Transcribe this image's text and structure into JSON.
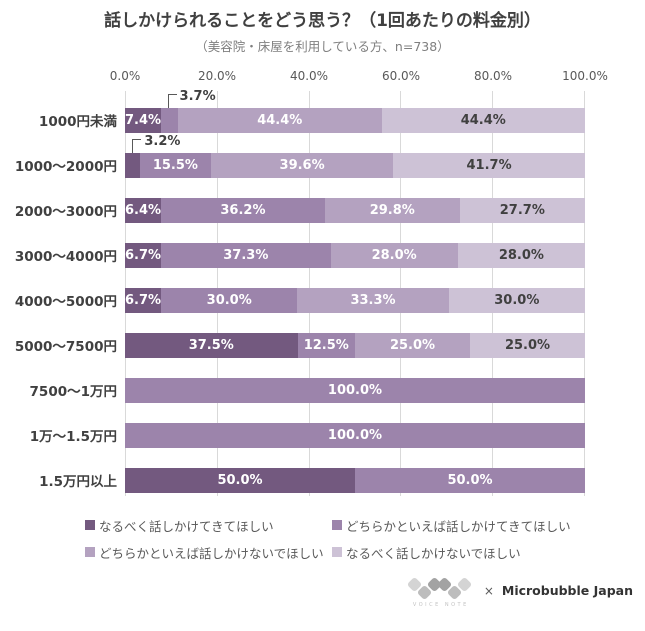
{
  "title": "話しかけられることをどう思う？（1回あたりの料金別）",
  "subtitle": "（美容院・床屋を利用している方、n=738）",
  "axis": {
    "ticks": [
      "0.0%",
      "20.0%",
      "40.0%",
      "60.0%",
      "80.0%",
      "100.0%"
    ]
  },
  "colors": {
    "series": [
      "#73597f",
      "#9c84ab",
      "#b4a2c0",
      "#cdc2d6"
    ],
    "gridline": "#d9d9d9",
    "label_on_light": "#404040",
    "label_on_dark": "#ffffff"
  },
  "legend": [
    {
      "label": "なるべく話しかけてきてほしい",
      "color": "#73597f"
    },
    {
      "label": "どちらかといえば話しかけてきてほしい",
      "color": "#9c84ab"
    },
    {
      "label": "どちらかといえば話しかけないでほしい",
      "color": "#b4a2c0"
    },
    {
      "label": "なるべく話しかけないでほしい",
      "color": "#cdc2d6"
    }
  ],
  "rows": [
    {
      "category": "1000円未満",
      "segments": [
        {
          "value": 7.4,
          "label": "7.4%",
          "series": 0,
          "label_pos": "center"
        },
        {
          "value": 3.7,
          "label": "3.7%",
          "series": 1,
          "label_pos": "callout"
        },
        {
          "value": 44.4,
          "label": "44.4%",
          "series": 2,
          "label_pos": "center"
        },
        {
          "value": 44.4,
          "label": "44.4%",
          "series": 3,
          "label_pos": "center"
        }
      ]
    },
    {
      "category": "1000〜2000円",
      "segments": [
        {
          "value": 3.2,
          "label": "3.2%",
          "series": 0,
          "label_pos": "callout"
        },
        {
          "value": 15.5,
          "label": "15.5%",
          "series": 1,
          "label_pos": "center"
        },
        {
          "value": 39.6,
          "label": "39.6%",
          "series": 2,
          "label_pos": "center"
        },
        {
          "value": 41.7,
          "label": "41.7%",
          "series": 3,
          "label_pos": "center"
        }
      ]
    },
    {
      "category": "2000〜3000円",
      "segments": [
        {
          "value": 6.4,
          "label": "6.4%",
          "series": 0,
          "label_pos": "center"
        },
        {
          "value": 36.2,
          "label": "36.2%",
          "series": 1,
          "label_pos": "center"
        },
        {
          "value": 29.8,
          "label": "29.8%",
          "series": 2,
          "label_pos": "center"
        },
        {
          "value": 27.7,
          "label": "27.7%",
          "series": 3,
          "label_pos": "center"
        }
      ]
    },
    {
      "category": "3000〜4000円",
      "segments": [
        {
          "value": 6.7,
          "label": "6.7%",
          "series": 0,
          "label_pos": "center"
        },
        {
          "value": 37.3,
          "label": "37.3%",
          "series": 1,
          "label_pos": "center"
        },
        {
          "value": 28.0,
          "label": "28.0%",
          "series": 2,
          "label_pos": "center"
        },
        {
          "value": 28.0,
          "label": "28.0%",
          "series": 3,
          "label_pos": "center"
        }
      ]
    },
    {
      "category": "4000〜5000円",
      "segments": [
        {
          "value": 6.7,
          "label": "6.7%",
          "series": 0,
          "label_pos": "center"
        },
        {
          "value": 30.0,
          "label": "30.0%",
          "series": 1,
          "label_pos": "center"
        },
        {
          "value": 33.3,
          "label": "33.3%",
          "series": 2,
          "label_pos": "center"
        },
        {
          "value": 30.0,
          "label": "30.0%",
          "series": 3,
          "label_pos": "center"
        }
      ]
    },
    {
      "category": "5000〜7500円",
      "segments": [
        {
          "value": 37.5,
          "label": "37.5%",
          "series": 0,
          "label_pos": "center"
        },
        {
          "value": 12.5,
          "label": "12.5%",
          "series": 1,
          "label_pos": "center"
        },
        {
          "value": 25.0,
          "label": "25.0%",
          "series": 2,
          "label_pos": "center"
        },
        {
          "value": 25.0,
          "label": "25.0%",
          "series": 3,
          "label_pos": "center"
        }
      ]
    },
    {
      "category": "7500〜1万円",
      "segments": [
        {
          "value": 100.0,
          "label": "100.0%",
          "series": 1,
          "label_pos": "center"
        }
      ]
    },
    {
      "category": "1万〜1.5万円",
      "segments": [
        {
          "value": 100.0,
          "label": "100.0%",
          "series": 1,
          "label_pos": "center"
        }
      ]
    },
    {
      "category": "1.5万円以上",
      "segments": [
        {
          "value": 50.0,
          "label": "50.0%",
          "series": 0,
          "label_pos": "center"
        },
        {
          "value": 50.0,
          "label": "50.0%",
          "series": 1,
          "label_pos": "center"
        }
      ]
    }
  ],
  "footer": {
    "logo_caption": "VOICE NOTE",
    "separator": "×",
    "brand": "Microbubble Japan"
  },
  "chart_data": {
    "type": "bar",
    "orientation": "horizontal",
    "stacked": true,
    "title": "話しかけられることをどう思う？（1回あたりの料金別）",
    "subtitle": "（美容院・床屋を利用している方、n=738）",
    "categories": [
      "1000円未満",
      "1000〜2000円",
      "2000〜3000円",
      "3000〜4000円",
      "4000〜5000円",
      "5000〜7500円",
      "7500〜1万円",
      "1万〜1.5万円",
      "1.5万円以上"
    ],
    "series": [
      {
        "name": "なるべく話しかけてきてほしい",
        "color": "#73597f",
        "values": [
          7.4,
          3.2,
          6.4,
          6.7,
          6.7,
          37.5,
          0,
          0,
          50.0
        ]
      },
      {
        "name": "どちらかといえば話しかけてきてほしい",
        "color": "#9c84ab",
        "values": [
          3.7,
          15.5,
          36.2,
          37.3,
          30.0,
          12.5,
          100.0,
          100.0,
          50.0
        ]
      },
      {
        "name": "どちらかといえば話しかけないでほしい",
        "color": "#b4a2c0",
        "values": [
          44.4,
          39.6,
          29.8,
          28.0,
          33.3,
          25.0,
          0,
          0,
          0
        ]
      },
      {
        "name": "なるべく話しかけないでほしい",
        "color": "#cdc2d6",
        "values": [
          44.4,
          41.7,
          27.7,
          28.0,
          30.0,
          25.0,
          0,
          0,
          0
        ]
      }
    ],
    "xlim": [
      0,
      100
    ],
    "x_ticks": [
      "0.0%",
      "20.0%",
      "40.0%",
      "60.0%",
      "80.0%",
      "100.0%"
    ],
    "x_tick_position": "top",
    "grid": true,
    "legend_position": "bottom"
  }
}
